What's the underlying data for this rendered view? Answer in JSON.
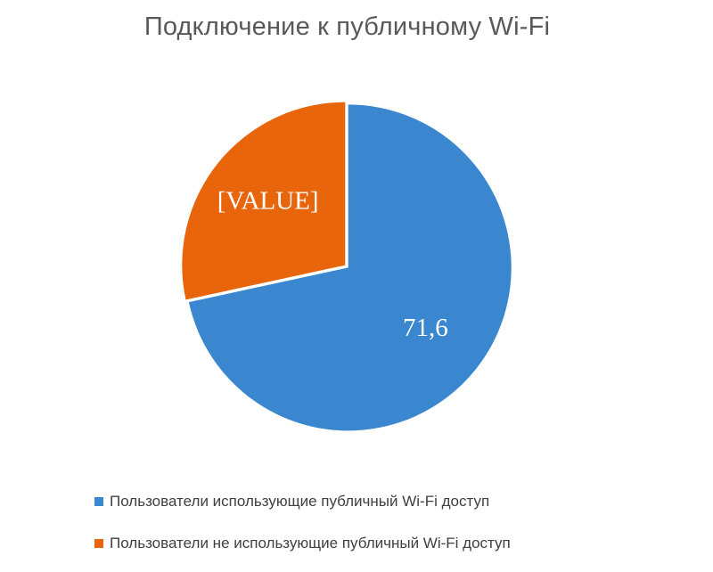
{
  "chart_data": {
    "type": "pie",
    "title": "Подключение к публичному Wi-Fi",
    "start_angle_deg": 0,
    "direction": "clockwise",
    "slices": [
      {
        "name": "Пользователи использующие публичный Wi-Fi доступ",
        "value": 71.6,
        "label": "71,6",
        "color": "#3a87cf"
      },
      {
        "name": "Пользователи не использующие публичный Wi-Fi доступ",
        "value": 28.4,
        "label": "[VALUE]",
        "color": "#e8650c"
      }
    ],
    "legend": {
      "placement": "bottom"
    }
  }
}
